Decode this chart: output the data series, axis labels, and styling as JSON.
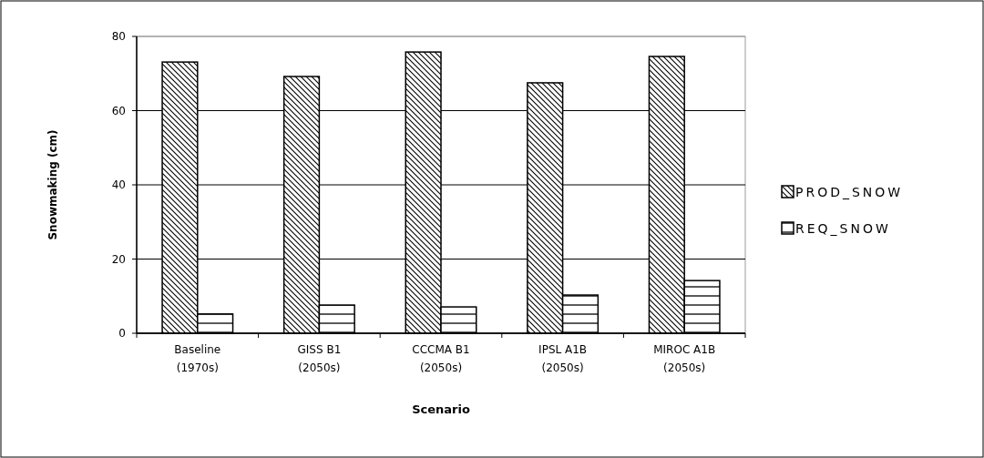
{
  "chart_data": {
    "type": "bar",
    "xlabel": "Scenario",
    "ylabel": "Snowmaking (cm)",
    "categories": [
      "Baseline\n(1970s)",
      "GISS B1\n(2050s)",
      "CCCMA B1\n(2050s)",
      "IPSL A1B\n(2050s)",
      "MIROC A1B\n(2050s)"
    ],
    "series": [
      {
        "name": "PROD_SNOW",
        "color": "#000000",
        "values": [
          73.1,
          69.2,
          75.8,
          67.5,
          74.6
        ]
      },
      {
        "name": "REQ_SNOW",
        "color": "#000000",
        "values": [
          5.2,
          7.6,
          7.1,
          10.3,
          14.2
        ]
      }
    ],
    "ylim": [
      0,
      80
    ],
    "yticks": [
      0,
      20,
      40,
      60,
      80
    ],
    "grid": "y",
    "legend": "right"
  }
}
